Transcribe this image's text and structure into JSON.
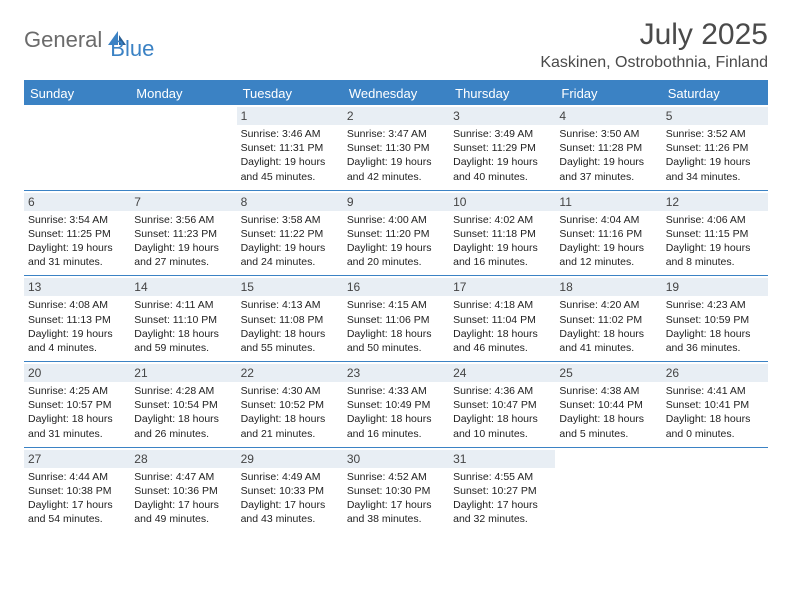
{
  "logo": {
    "general": "General",
    "blue": "Blue"
  },
  "title": "July 2025",
  "location": "Kaskinen, Ostrobothnia, Finland",
  "colors": {
    "brand_blue": "#3b82c4",
    "header_text": "#4a4a4a",
    "daybar_bg": "#e8eef4",
    "logo_gray": "#6b6b6b"
  },
  "typography": {
    "title_fontsize": 30,
    "location_fontsize": 16,
    "dayhead_fontsize": 13,
    "daynum_fontsize": 12,
    "body_fontsize": 10.5
  },
  "day_names": [
    "Sunday",
    "Monday",
    "Tuesday",
    "Wednesday",
    "Thursday",
    "Friday",
    "Saturday"
  ],
  "weeks": [
    [
      {
        "n": "",
        "sr": "",
        "ss": "",
        "dl1": "",
        "dl2": ""
      },
      {
        "n": "",
        "sr": "",
        "ss": "",
        "dl1": "",
        "dl2": ""
      },
      {
        "n": "1",
        "sr": "Sunrise: 3:46 AM",
        "ss": "Sunset: 11:31 PM",
        "dl1": "Daylight: 19 hours",
        "dl2": "and 45 minutes."
      },
      {
        "n": "2",
        "sr": "Sunrise: 3:47 AM",
        "ss": "Sunset: 11:30 PM",
        "dl1": "Daylight: 19 hours",
        "dl2": "and 42 minutes."
      },
      {
        "n": "3",
        "sr": "Sunrise: 3:49 AM",
        "ss": "Sunset: 11:29 PM",
        "dl1": "Daylight: 19 hours",
        "dl2": "and 40 minutes."
      },
      {
        "n": "4",
        "sr": "Sunrise: 3:50 AM",
        "ss": "Sunset: 11:28 PM",
        "dl1": "Daylight: 19 hours",
        "dl2": "and 37 minutes."
      },
      {
        "n": "5",
        "sr": "Sunrise: 3:52 AM",
        "ss": "Sunset: 11:26 PM",
        "dl1": "Daylight: 19 hours",
        "dl2": "and 34 minutes."
      }
    ],
    [
      {
        "n": "6",
        "sr": "Sunrise: 3:54 AM",
        "ss": "Sunset: 11:25 PM",
        "dl1": "Daylight: 19 hours",
        "dl2": "and 31 minutes."
      },
      {
        "n": "7",
        "sr": "Sunrise: 3:56 AM",
        "ss": "Sunset: 11:23 PM",
        "dl1": "Daylight: 19 hours",
        "dl2": "and 27 minutes."
      },
      {
        "n": "8",
        "sr": "Sunrise: 3:58 AM",
        "ss": "Sunset: 11:22 PM",
        "dl1": "Daylight: 19 hours",
        "dl2": "and 24 minutes."
      },
      {
        "n": "9",
        "sr": "Sunrise: 4:00 AM",
        "ss": "Sunset: 11:20 PM",
        "dl1": "Daylight: 19 hours",
        "dl2": "and 20 minutes."
      },
      {
        "n": "10",
        "sr": "Sunrise: 4:02 AM",
        "ss": "Sunset: 11:18 PM",
        "dl1": "Daylight: 19 hours",
        "dl2": "and 16 minutes."
      },
      {
        "n": "11",
        "sr": "Sunrise: 4:04 AM",
        "ss": "Sunset: 11:16 PM",
        "dl1": "Daylight: 19 hours",
        "dl2": "and 12 minutes."
      },
      {
        "n": "12",
        "sr": "Sunrise: 4:06 AM",
        "ss": "Sunset: 11:15 PM",
        "dl1": "Daylight: 19 hours",
        "dl2": "and 8 minutes."
      }
    ],
    [
      {
        "n": "13",
        "sr": "Sunrise: 4:08 AM",
        "ss": "Sunset: 11:13 PM",
        "dl1": "Daylight: 19 hours",
        "dl2": "and 4 minutes."
      },
      {
        "n": "14",
        "sr": "Sunrise: 4:11 AM",
        "ss": "Sunset: 11:10 PM",
        "dl1": "Daylight: 18 hours",
        "dl2": "and 59 minutes."
      },
      {
        "n": "15",
        "sr": "Sunrise: 4:13 AM",
        "ss": "Sunset: 11:08 PM",
        "dl1": "Daylight: 18 hours",
        "dl2": "and 55 minutes."
      },
      {
        "n": "16",
        "sr": "Sunrise: 4:15 AM",
        "ss": "Sunset: 11:06 PM",
        "dl1": "Daylight: 18 hours",
        "dl2": "and 50 minutes."
      },
      {
        "n": "17",
        "sr": "Sunrise: 4:18 AM",
        "ss": "Sunset: 11:04 PM",
        "dl1": "Daylight: 18 hours",
        "dl2": "and 46 minutes."
      },
      {
        "n": "18",
        "sr": "Sunrise: 4:20 AM",
        "ss": "Sunset: 11:02 PM",
        "dl1": "Daylight: 18 hours",
        "dl2": "and 41 minutes."
      },
      {
        "n": "19",
        "sr": "Sunrise: 4:23 AM",
        "ss": "Sunset: 10:59 PM",
        "dl1": "Daylight: 18 hours",
        "dl2": "and 36 minutes."
      }
    ],
    [
      {
        "n": "20",
        "sr": "Sunrise: 4:25 AM",
        "ss": "Sunset: 10:57 PM",
        "dl1": "Daylight: 18 hours",
        "dl2": "and 31 minutes."
      },
      {
        "n": "21",
        "sr": "Sunrise: 4:28 AM",
        "ss": "Sunset: 10:54 PM",
        "dl1": "Daylight: 18 hours",
        "dl2": "and 26 minutes."
      },
      {
        "n": "22",
        "sr": "Sunrise: 4:30 AM",
        "ss": "Sunset: 10:52 PM",
        "dl1": "Daylight: 18 hours",
        "dl2": "and 21 minutes."
      },
      {
        "n": "23",
        "sr": "Sunrise: 4:33 AM",
        "ss": "Sunset: 10:49 PM",
        "dl1": "Daylight: 18 hours",
        "dl2": "and 16 minutes."
      },
      {
        "n": "24",
        "sr": "Sunrise: 4:36 AM",
        "ss": "Sunset: 10:47 PM",
        "dl1": "Daylight: 18 hours",
        "dl2": "and 10 minutes."
      },
      {
        "n": "25",
        "sr": "Sunrise: 4:38 AM",
        "ss": "Sunset: 10:44 PM",
        "dl1": "Daylight: 18 hours",
        "dl2": "and 5 minutes."
      },
      {
        "n": "26",
        "sr": "Sunrise: 4:41 AM",
        "ss": "Sunset: 10:41 PM",
        "dl1": "Daylight: 18 hours",
        "dl2": "and 0 minutes."
      }
    ],
    [
      {
        "n": "27",
        "sr": "Sunrise: 4:44 AM",
        "ss": "Sunset: 10:38 PM",
        "dl1": "Daylight: 17 hours",
        "dl2": "and 54 minutes."
      },
      {
        "n": "28",
        "sr": "Sunrise: 4:47 AM",
        "ss": "Sunset: 10:36 PM",
        "dl1": "Daylight: 17 hours",
        "dl2": "and 49 minutes."
      },
      {
        "n": "29",
        "sr": "Sunrise: 4:49 AM",
        "ss": "Sunset: 10:33 PM",
        "dl1": "Daylight: 17 hours",
        "dl2": "and 43 minutes."
      },
      {
        "n": "30",
        "sr": "Sunrise: 4:52 AM",
        "ss": "Sunset: 10:30 PM",
        "dl1": "Daylight: 17 hours",
        "dl2": "and 38 minutes."
      },
      {
        "n": "31",
        "sr": "Sunrise: 4:55 AM",
        "ss": "Sunset: 10:27 PM",
        "dl1": "Daylight: 17 hours",
        "dl2": "and 32 minutes."
      },
      {
        "n": "",
        "sr": "",
        "ss": "",
        "dl1": "",
        "dl2": ""
      },
      {
        "n": "",
        "sr": "",
        "ss": "",
        "dl1": "",
        "dl2": ""
      }
    ]
  ]
}
